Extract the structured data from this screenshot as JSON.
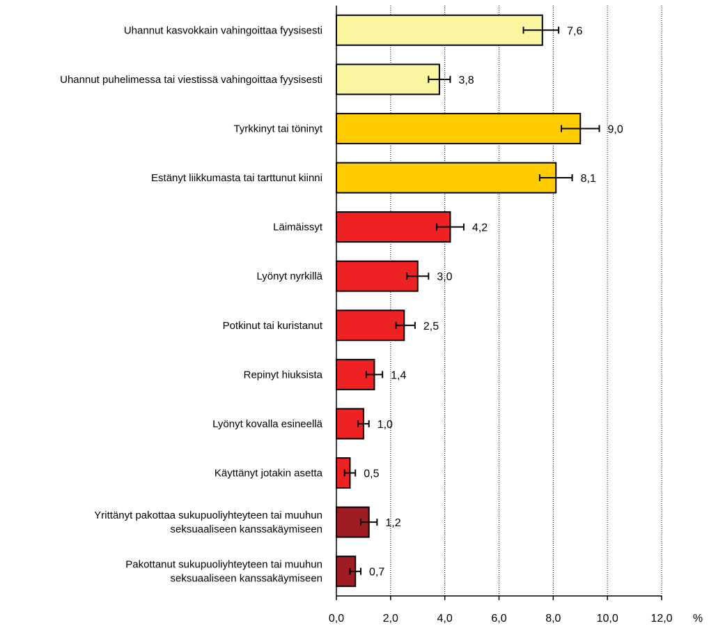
{
  "chart_data": {
    "type": "bar",
    "orientation": "horizontal",
    "categories": [
      [
        "Uhannut kasvokkain vahingoittaa fyysisesti"
      ],
      [
        "Uhannut puhelimessa tai viestissä vahingoittaa fyysisesti"
      ],
      [
        "Tyrkkinyt tai töninyt"
      ],
      [
        "Estänyt liikkumasta tai tarttunut kiinni"
      ],
      [
        "Läimäissyt"
      ],
      [
        "Lyönyt nyrkillä"
      ],
      [
        "Potkinut tai kuristanut"
      ],
      [
        "Repinyt hiuksista"
      ],
      [
        "Lyönyt kovalla esineellä"
      ],
      [
        "Käyttänyt jotakin asetta"
      ],
      [
        "Yrittänyt pakottaa sukupuoliyhteyteen tai muuhun",
        "seksuaaliseen kanssakäymiseen"
      ],
      [
        "Pakottanut sukupuoliyhteyteen tai muuhun",
        "seksuaaliseen kanssakäymiseen"
      ]
    ],
    "values": [
      7.6,
      3.8,
      9.0,
      8.1,
      4.2,
      3.0,
      2.5,
      1.4,
      1.0,
      0.5,
      1.2,
      0.7
    ],
    "value_labels": [
      "7,6",
      "3,8",
      "9,0",
      "8,1",
      "4,2",
      "3,0",
      "2,5",
      "1,4",
      "1,0",
      "0,5",
      "1,2",
      "0,7"
    ],
    "error_low": [
      6.9,
      3.4,
      8.3,
      7.5,
      3.7,
      2.6,
      2.2,
      1.1,
      0.8,
      0.3,
      0.9,
      0.5
    ],
    "error_high": [
      8.2,
      4.2,
      9.7,
      8.7,
      4.7,
      3.4,
      2.9,
      1.7,
      1.2,
      0.7,
      1.5,
      0.9
    ],
    "colors": [
      "#faf5a0",
      "#faf5a0",
      "#ffcc00",
      "#ffcc00",
      "#ee2222",
      "#ee2222",
      "#ee2222",
      "#ee2222",
      "#ee2222",
      "#ee2222",
      "#9e1c22",
      "#9e1c22"
    ],
    "xlim": [
      0,
      12
    ],
    "xticks": [
      0,
      2,
      4,
      6,
      8,
      10,
      12
    ],
    "xtick_labels": [
      "0,0",
      "2,0",
      "4,0",
      "6,0",
      "8,0",
      "10,0",
      "12,0"
    ],
    "xlabel": "%",
    "grid": "vertical dotted"
  }
}
